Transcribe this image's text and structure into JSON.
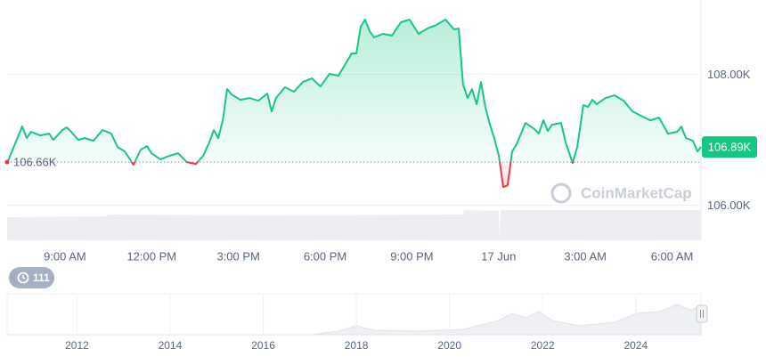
{
  "chart_data": [
    {
      "type": "line",
      "color": "#16c784",
      "negative_color": "#ea3943",
      "x": [
        7.0,
        7.52,
        7.68,
        7.83,
        8.14,
        8.45,
        8.6,
        8.91,
        9.06,
        9.22,
        9.46,
        9.68,
        9.99,
        10.3,
        10.6,
        10.82,
        11.07,
        11.37,
        11.62,
        11.84,
        11.99,
        12.3,
        12.61,
        12.91,
        13.22,
        13.53,
        13.78,
        13.99,
        14.15,
        14.3,
        14.46,
        14.61,
        14.76,
        15.07,
        15.38,
        15.69,
        16.0,
        16.15,
        16.3,
        16.61,
        16.92,
        17.23,
        17.54,
        17.84,
        18.15,
        18.46,
        18.77,
        18.92,
        19.08,
        19.23,
        19.38,
        19.54,
        19.69,
        20.0,
        20.31,
        20.62,
        20.92,
        21.23,
        21.54,
        21.85,
        22.16,
        22.46,
        22.62,
        22.77,
        22.93,
        23.08,
        23.24,
        23.39,
        23.54,
        23.7,
        23.85,
        24.01,
        24.16,
        24.31,
        24.47,
        24.62,
        24.93,
        25.24,
        25.39,
        25.55,
        25.7,
        25.85,
        26.16,
        26.32,
        26.56,
        26.72,
        26.93,
        27.09,
        27.24,
        27.39,
        27.7,
        28.01,
        28.32,
        28.63,
        28.93,
        29.24,
        29.55,
        29.86,
        30.17,
        30.32,
        30.48,
        30.72,
        30.88,
        31.0
      ],
      "values": [
        106.646,
        107.204,
        107.027,
        107.122,
        107.068,
        107.095,
        107.0,
        107.15,
        107.19,
        107.122,
        107.0,
        107.027,
        106.986,
        107.15,
        107.095,
        106.891,
        106.823,
        106.619,
        106.85,
        106.905,
        106.796,
        106.701,
        106.755,
        106.796,
        106.66,
        106.633,
        106.755,
        106.959,
        107.15,
        107.027,
        107.299,
        107.776,
        107.694,
        107.612,
        107.639,
        107.599,
        107.707,
        107.435,
        107.639,
        107.803,
        107.735,
        107.884,
        107.939,
        107.816,
        108.007,
        107.98,
        108.211,
        108.32,
        108.32,
        108.728,
        108.837,
        108.66,
        108.565,
        108.619,
        108.592,
        108.796,
        108.837,
        108.619,
        108.701,
        108.755,
        108.837,
        108.687,
        108.701,
        107.844,
        107.639,
        107.776,
        107.544,
        107.884,
        107.503,
        107.231,
        107.027,
        106.755,
        106.279,
        106.306,
        106.823,
        106.932,
        107.259,
        107.163,
        107.095,
        107.299,
        107.136,
        107.231,
        107.259,
        106.959,
        106.646,
        106.891,
        107.531,
        107.503,
        107.612,
        107.544,
        107.639,
        107.68,
        107.599,
        107.435,
        107.367,
        107.299,
        107.34,
        107.095,
        107.122,
        107.204,
        107.027,
        106.986,
        106.823,
        106.891
      ],
      "xlim": [
        7,
        31
      ],
      "ylim": [
        105.9,
        109.0
      ],
      "xticks": [
        {
          "value": 9,
          "label": "9:00 AM"
        },
        {
          "value": 12,
          "label": "12:00 PM"
        },
        {
          "value": 15,
          "label": "3:00 PM"
        },
        {
          "value": 18,
          "label": "6:00 PM"
        },
        {
          "value": 21,
          "label": "9:00 PM"
        },
        {
          "value": 24,
          "label": "17 Jun"
        },
        {
          "value": 27,
          "label": "3:00 AM"
        },
        {
          "value": 30,
          "label": "6:00 AM"
        }
      ],
      "yticks": [
        {
          "value": 108,
          "label": "108.00K"
        },
        {
          "value": 106,
          "label": "106.00K"
        }
      ],
      "grid": true,
      "baseline": {
        "value": 106.66,
        "label": "106.66K"
      },
      "last_price": {
        "value": 106.89,
        "label": "106.89K"
      }
    },
    {
      "type": "navigator",
      "xlim": [
        2010.5,
        2025.4
      ],
      "xticks": [
        2012,
        2014,
        2016,
        2018,
        2020,
        2022,
        2024
      ]
    }
  ],
  "watermark": "CoinMarketCap",
  "badge": "111"
}
